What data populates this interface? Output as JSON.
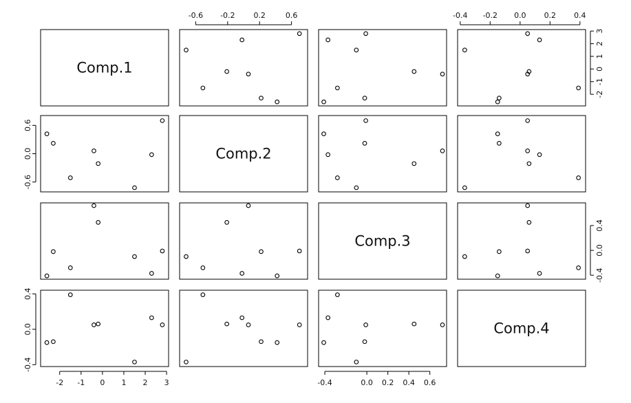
{
  "chart_data": {
    "type": "scatter",
    "title": "",
    "matrix": "pairs",
    "variables": [
      {
        "name": "Comp.1",
        "values": [
          -2.6,
          -2.3,
          -1.5,
          -0.4,
          -0.2,
          1.5,
          2.3,
          2.8
        ],
        "range": [
          -2.7,
          2.9
        ],
        "ticks": [
          -2,
          -1,
          0,
          1,
          2,
          3
        ]
      },
      {
        "name": "Comp.2",
        "values": [
          0.42,
          0.22,
          -0.51,
          0.06,
          -0.21,
          -0.72,
          -0.02,
          0.7
        ],
        "range": [
          -0.75,
          0.75
        ],
        "ticks": [
          -0.6,
          -0.2,
          0.2,
          0.6
        ],
        "tick_labels_top": [
          "-0.6",
          "-0.2",
          "0.2",
          "0.6"
        ],
        "tick_labels_left": [
          "-0.6",
          "0.0",
          "0.6"
        ],
        "ticks_left": [
          -0.6,
          0.0,
          0.6
        ]
      },
      {
        "name": "Comp.3",
        "values": [
          -0.41,
          -0.02,
          -0.28,
          0.72,
          0.45,
          -0.1,
          -0.37,
          -0.01
        ],
        "range": [
          -0.42,
          0.72
        ],
        "ticks": [
          -0.4,
          0.0,
          0.4
        ],
        "tick_labels_bottom": [
          "-0.4",
          "0.0",
          "0.2",
          "0.4",
          "0.6"
        ],
        "ticks_bottom": [
          -0.4,
          0.0,
          0.2,
          0.4,
          0.6
        ],
        "tick_labels_right": [
          "-0.4",
          "0.0",
          "0.4"
        ]
      },
      {
        "name": "Comp.4",
        "values": [
          -0.15,
          -0.14,
          0.39,
          0.05,
          0.06,
          -0.37,
          0.13,
          0.05
        ],
        "range": [
          -0.39,
          0.41
        ],
        "ticks": [
          -0.4,
          -0.2,
          0.0,
          0.2,
          0.4
        ],
        "tick_labels_top": [
          "-0.4",
          "-0.2",
          "0.0",
          "0.2",
          "0.4"
        ],
        "tick_labels_left": [
          "-0.4",
          "0.0",
          "0.4"
        ],
        "ticks_left": [
          -0.4,
          0.0,
          0.4
        ]
      }
    ],
    "axis_labels": {
      "bottom_comp1": [
        "-2",
        "-1",
        "0",
        "1",
        "2",
        "3"
      ],
      "right_comp1": [
        "-2",
        "-1",
        "0",
        "1",
        "2",
        "3"
      ]
    },
    "grid": false,
    "legend": "none"
  }
}
